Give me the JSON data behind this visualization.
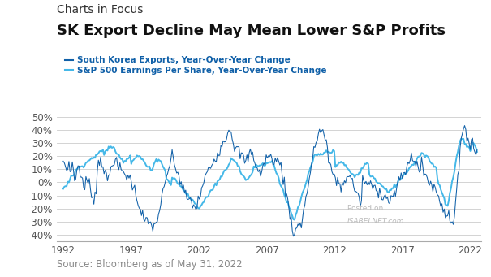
{
  "title_line1": "Charts in Focus",
  "title_line2": "SK Export Decline May Mean Lower S&P Profits",
  "legend_line1": "South Korea Exports, Year-Over-Year Change",
  "legend_line2": "S&P 500 Earnings Per Share, Year-Over-Year Change",
  "source_text": "Source: Bloomberg as of May 31, 2022",
  "watermark_line1": "Posted on",
  "watermark_line2": "ISABELNET.com",
  "sk_color": "#1060a8",
  "sp_color": "#45b8e8",
  "ylim": [
    -0.45,
    0.57
  ],
  "yticks": [
    -0.4,
    -0.3,
    -0.2,
    -0.1,
    0.0,
    0.1,
    0.2,
    0.3,
    0.4,
    0.5
  ],
  "xticks": [
    1992,
    1997,
    2002,
    2007,
    2012,
    2017,
    2022
  ],
  "xlim": [
    1991.5,
    2022.8
  ],
  "background_color": "#ffffff",
  "grid_color": "#cccccc",
  "title1_fontsize": 10,
  "title2_fontsize": 13,
  "legend_fontsize": 7.5,
  "source_fontsize": 8.5,
  "tick_fontsize": 8.5
}
